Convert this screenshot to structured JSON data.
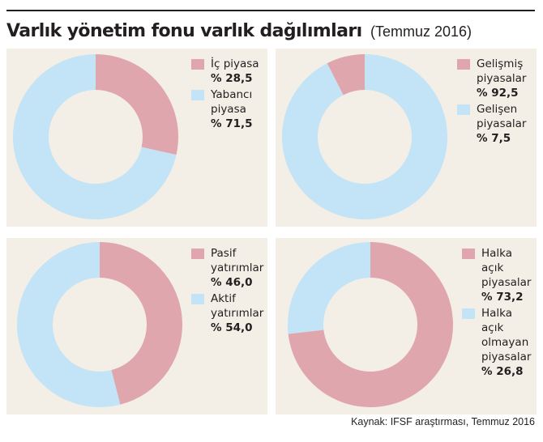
{
  "header": {
    "title": "Varlık yönetim fonu varlık dağılımları",
    "subtitle": "(Temmuz 2016)"
  },
  "colors": {
    "pink": "#e0a6ad",
    "blue": "#c3e3f6",
    "panel_bg": "#f3efe6"
  },
  "chart_data": [
    {
      "type": "pie",
      "donut": true,
      "title": "",
      "slices": [
        {
          "label": "İç piyasa",
          "value": 28.5,
          "value_label": "% 28,5",
          "color": "#e0a6ad"
        },
        {
          "label": "Yabancı piyasa",
          "value": 71.5,
          "value_label": "% 71,5",
          "color": "#c3e3f6"
        }
      ],
      "legend_placement": "top-right"
    },
    {
      "type": "pie",
      "donut": true,
      "title": "",
      "slices": [
        {
          "label": "Gelişmiş piyasalar",
          "value": 92.5,
          "value_label": "% 92,5",
          "color": "#c3e3f6"
        },
        {
          "label": "Gelişen piyasalar",
          "value": 7.5,
          "value_label": "% 7,5",
          "color": "#e0a6ad"
        }
      ],
      "legend_placement": "top-right"
    },
    {
      "type": "pie",
      "donut": true,
      "title": "",
      "slices": [
        {
          "label": "Pasif yatırımlar",
          "value": 46.0,
          "value_label": "% 46,0",
          "color": "#e0a6ad"
        },
        {
          "label": "Aktif yatırımlar",
          "value": 54.0,
          "value_label": "% 54,0",
          "color": "#c3e3f6"
        }
      ],
      "legend_placement": "top-right"
    },
    {
      "type": "pie",
      "donut": true,
      "title": "",
      "slices": [
        {
          "label": "Halka açık piyasalar",
          "value": 73.2,
          "value_label": "% 73,2",
          "color": "#e0a6ad"
        },
        {
          "label": "Halka açık olmayan piyasalar",
          "value": 26.8,
          "value_label": "% 26,8",
          "color": "#c3e3f6"
        }
      ],
      "legend_placement": "top-right"
    }
  ],
  "legends": [
    [
      {
        "label": "İç piyasa",
        "value": "% 28,5",
        "swatch": "#e0a6ad"
      },
      {
        "label": "Yabancı piyasa",
        "value": "% 71,5",
        "swatch": "#c3e3f6"
      }
    ],
    [
      {
        "label": "Gelişmiş piyasalar",
        "value": "% 92,5",
        "swatch": "#e0a6ad"
      },
      {
        "label": "Gelişen piyasalar",
        "value": "% 7,5",
        "swatch": "#c3e3f6"
      }
    ],
    [
      {
        "label": "Pasif yatırımlar",
        "value": "% 46,0",
        "swatch": "#e0a6ad"
      },
      {
        "label": "Aktif yatırımlar",
        "value": "% 54,0",
        "swatch": "#c3e3f6"
      }
    ],
    [
      {
        "label": "Halka açık piyasalar",
        "value": "% 73,2",
        "swatch": "#e0a6ad"
      },
      {
        "label": "Halka açık olmayan piyasalar",
        "value": "% 26,8",
        "swatch": "#c3e3f6"
      }
    ]
  ],
  "footer": {
    "source": "Kaynak: IFSF araştırması, Temmuz 2016"
  }
}
